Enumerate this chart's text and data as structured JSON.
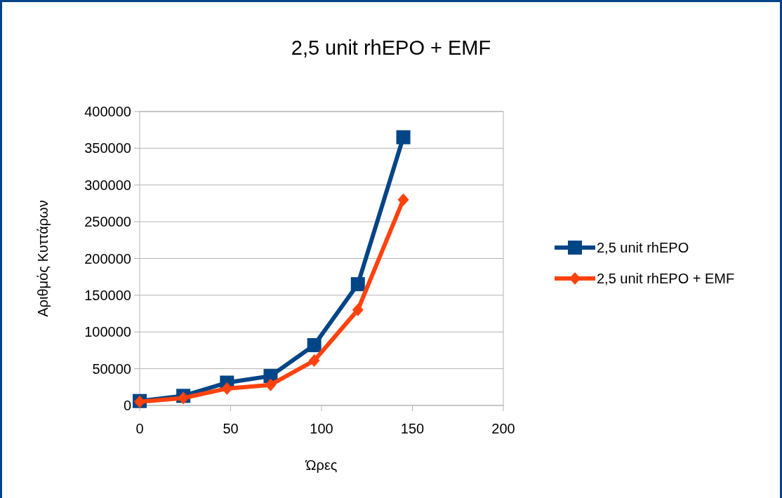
{
  "chart_data": {
    "type": "line",
    "title": "2,5 unit rhEPO + EMF",
    "xlabel": "Ώρες",
    "ylabel": "Αριθμός Κυττάρων",
    "x": [
      0,
      24,
      48,
      72,
      96,
      120,
      145
    ],
    "series": [
      {
        "name": "2,5 unit rhEPO",
        "color": "#004586",
        "marker": "square",
        "values": [
          6000,
          13000,
          31000,
          40000,
          82000,
          165000,
          365000
        ]
      },
      {
        "name": "2,5 unit rhEPO + EMF",
        "color": "#ff420e",
        "marker": "diamond",
        "values": [
          5000,
          10000,
          23000,
          28000,
          61000,
          130000,
          280000
        ]
      }
    ],
    "xlim": [
      0,
      200
    ],
    "xticks": [
      0,
      50,
      100,
      150,
      200
    ],
    "ylim": [
      0,
      400000
    ],
    "yticks": [
      0,
      50000,
      100000,
      150000,
      200000,
      250000,
      300000,
      350000,
      400000
    ],
    "grid": "y",
    "legend": "right",
    "line_style": "solid"
  }
}
